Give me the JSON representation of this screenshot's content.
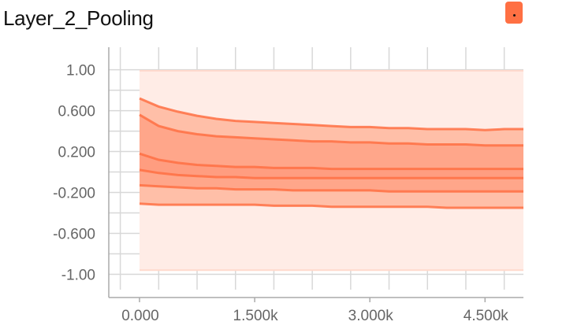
{
  "title": "Layer_2_Pooling",
  "badge_color": "#ff7043",
  "colors": {
    "band_outer": "#ffece6",
    "band_mid": "#ffbfa8",
    "band_inner": "#ff9d80",
    "line": "#ff7043",
    "grid": "#d8d8d8",
    "axis": "#aaaaaa"
  },
  "chart_data": {
    "type": "area",
    "title": "Layer_2_Pooling",
    "xlabel": "",
    "ylabel": "",
    "xlim": [
      -400,
      5000
    ],
    "ylim": [
      -1.15,
      1.22
    ],
    "x_ticks": [
      "0.000",
      "1.500k",
      "3.000k",
      "4.500k"
    ],
    "x_tick_values": [
      0,
      1500,
      3000,
      4500
    ],
    "y_ticks": [
      "1.00",
      "0.600",
      "0.200",
      "-0.200",
      "-0.600",
      "-1.00"
    ],
    "y_tick_values": [
      1.0,
      0.6,
      0.2,
      -0.2,
      -0.6,
      -1.0
    ],
    "grid": true,
    "x": [
      0,
      250,
      500,
      750,
      1000,
      1250,
      1500,
      1750,
      2000,
      2250,
      2500,
      2750,
      3000,
      3250,
      3500,
      3750,
      4000,
      4250,
      4500,
      4750,
      5000
    ],
    "series": [
      {
        "values": [
          0.99,
          0.99,
          0.99,
          0.99,
          0.99,
          0.99,
          0.99,
          0.99,
          0.99,
          0.99,
          0.99,
          0.99,
          0.99,
          0.99,
          0.99,
          0.99,
          0.99,
          0.99,
          0.99,
          0.99,
          0.99
        ]
      },
      {
        "values": [
          0.72,
          0.64,
          0.59,
          0.55,
          0.52,
          0.5,
          0.49,
          0.48,
          0.47,
          0.46,
          0.45,
          0.44,
          0.44,
          0.43,
          0.43,
          0.42,
          0.42,
          0.42,
          0.41,
          0.42,
          0.42
        ]
      },
      {
        "values": [
          0.56,
          0.45,
          0.4,
          0.37,
          0.35,
          0.34,
          0.33,
          0.32,
          0.31,
          0.3,
          0.3,
          0.29,
          0.29,
          0.28,
          0.28,
          0.27,
          0.27,
          0.27,
          0.26,
          0.26,
          0.26
        ]
      },
      {
        "values": [
          0.18,
          0.12,
          0.09,
          0.07,
          0.06,
          0.05,
          0.05,
          0.04,
          0.04,
          0.04,
          0.03,
          0.03,
          0.03,
          0.03,
          0.03,
          0.03,
          0.03,
          0.03,
          0.03,
          0.03,
          0.03
        ]
      },
      {
        "values": [
          0.02,
          -0.01,
          -0.03,
          -0.04,
          -0.05,
          -0.05,
          -0.06,
          -0.06,
          -0.06,
          -0.06,
          -0.06,
          -0.06,
          -0.06,
          -0.06,
          -0.06,
          -0.06,
          -0.06,
          -0.06,
          -0.06,
          -0.06,
          -0.06
        ]
      },
      {
        "values": [
          -0.13,
          -0.14,
          -0.15,
          -0.16,
          -0.16,
          -0.17,
          -0.17,
          -0.17,
          -0.18,
          -0.18,
          -0.18,
          -0.18,
          -0.18,
          -0.19,
          -0.19,
          -0.19,
          -0.19,
          -0.19,
          -0.19,
          -0.19,
          -0.19
        ]
      },
      {
        "values": [
          -0.31,
          -0.32,
          -0.32,
          -0.32,
          -0.32,
          -0.32,
          -0.32,
          -0.33,
          -0.33,
          -0.33,
          -0.34,
          -0.34,
          -0.34,
          -0.34,
          -0.34,
          -0.34,
          -0.35,
          -0.35,
          -0.35,
          -0.35,
          -0.35
        ]
      },
      {
        "values": [
          -0.96,
          -0.96,
          -0.96,
          -0.96,
          -0.96,
          -0.96,
          -0.96,
          -0.96,
          -0.96,
          -0.96,
          -0.96,
          -0.96,
          -0.96,
          -0.96,
          -0.96,
          -0.96,
          -0.96,
          -0.96,
          -0.96,
          -0.96,
          -0.96
        ]
      }
    ]
  }
}
